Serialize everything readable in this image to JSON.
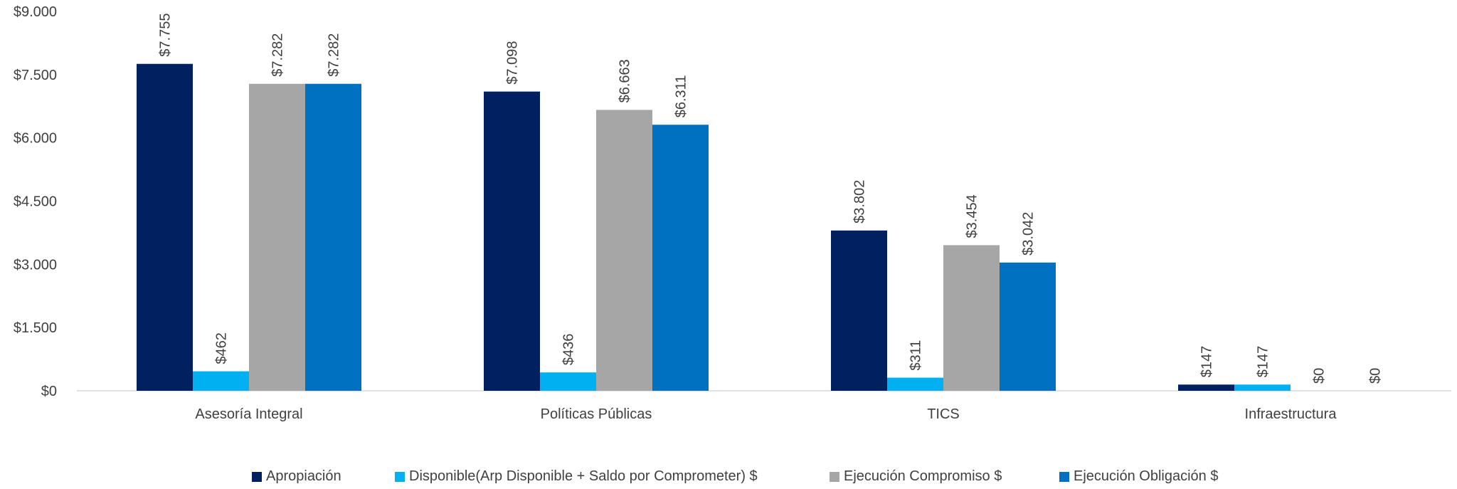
{
  "chart_data": {
    "type": "bar",
    "categories": [
      "Asesoría Integral",
      "Políticas Públicas",
      "TICS",
      "Infraestructura"
    ],
    "series": [
      {
        "name": "Apropiación",
        "color": "#002060",
        "values": [
          7755,
          7098,
          3802,
          147
        ],
        "labels": [
          "$7.755",
          "$7.098",
          "$3.802",
          "$147"
        ]
      },
      {
        "name": "Disponible(Arp Disponible + Saldo por Comprometer) $",
        "color": "#00B0F0",
        "values": [
          462,
          436,
          311,
          147
        ],
        "labels": [
          "$462",
          "$436",
          "$311",
          "$147"
        ]
      },
      {
        "name": "Ejecución Compromiso  $",
        "color": "#A6A6A6",
        "values": [
          7282,
          6663,
          3454,
          0
        ],
        "labels": [
          "$7.282",
          "$6.663",
          "$3.454",
          "$0"
        ]
      },
      {
        "name": "Ejecución Obligación  $",
        "color": "#0070C0",
        "values": [
          7282,
          6311,
          3042,
          0
        ],
        "labels": [
          "$7.282",
          "$6.311",
          "$3.042",
          "$0"
        ]
      }
    ],
    "yticks": [
      0,
      1500,
      3000,
      4500,
      6000,
      7500,
      9000
    ],
    "ytick_labels": [
      "$0",
      "$1.500",
      "$3.000",
      "$4.500",
      "$6.000",
      "$7.500",
      "$9.000"
    ],
    "ylim": [
      0,
      9000
    ],
    "grid": false,
    "legend_position": "bottom"
  }
}
